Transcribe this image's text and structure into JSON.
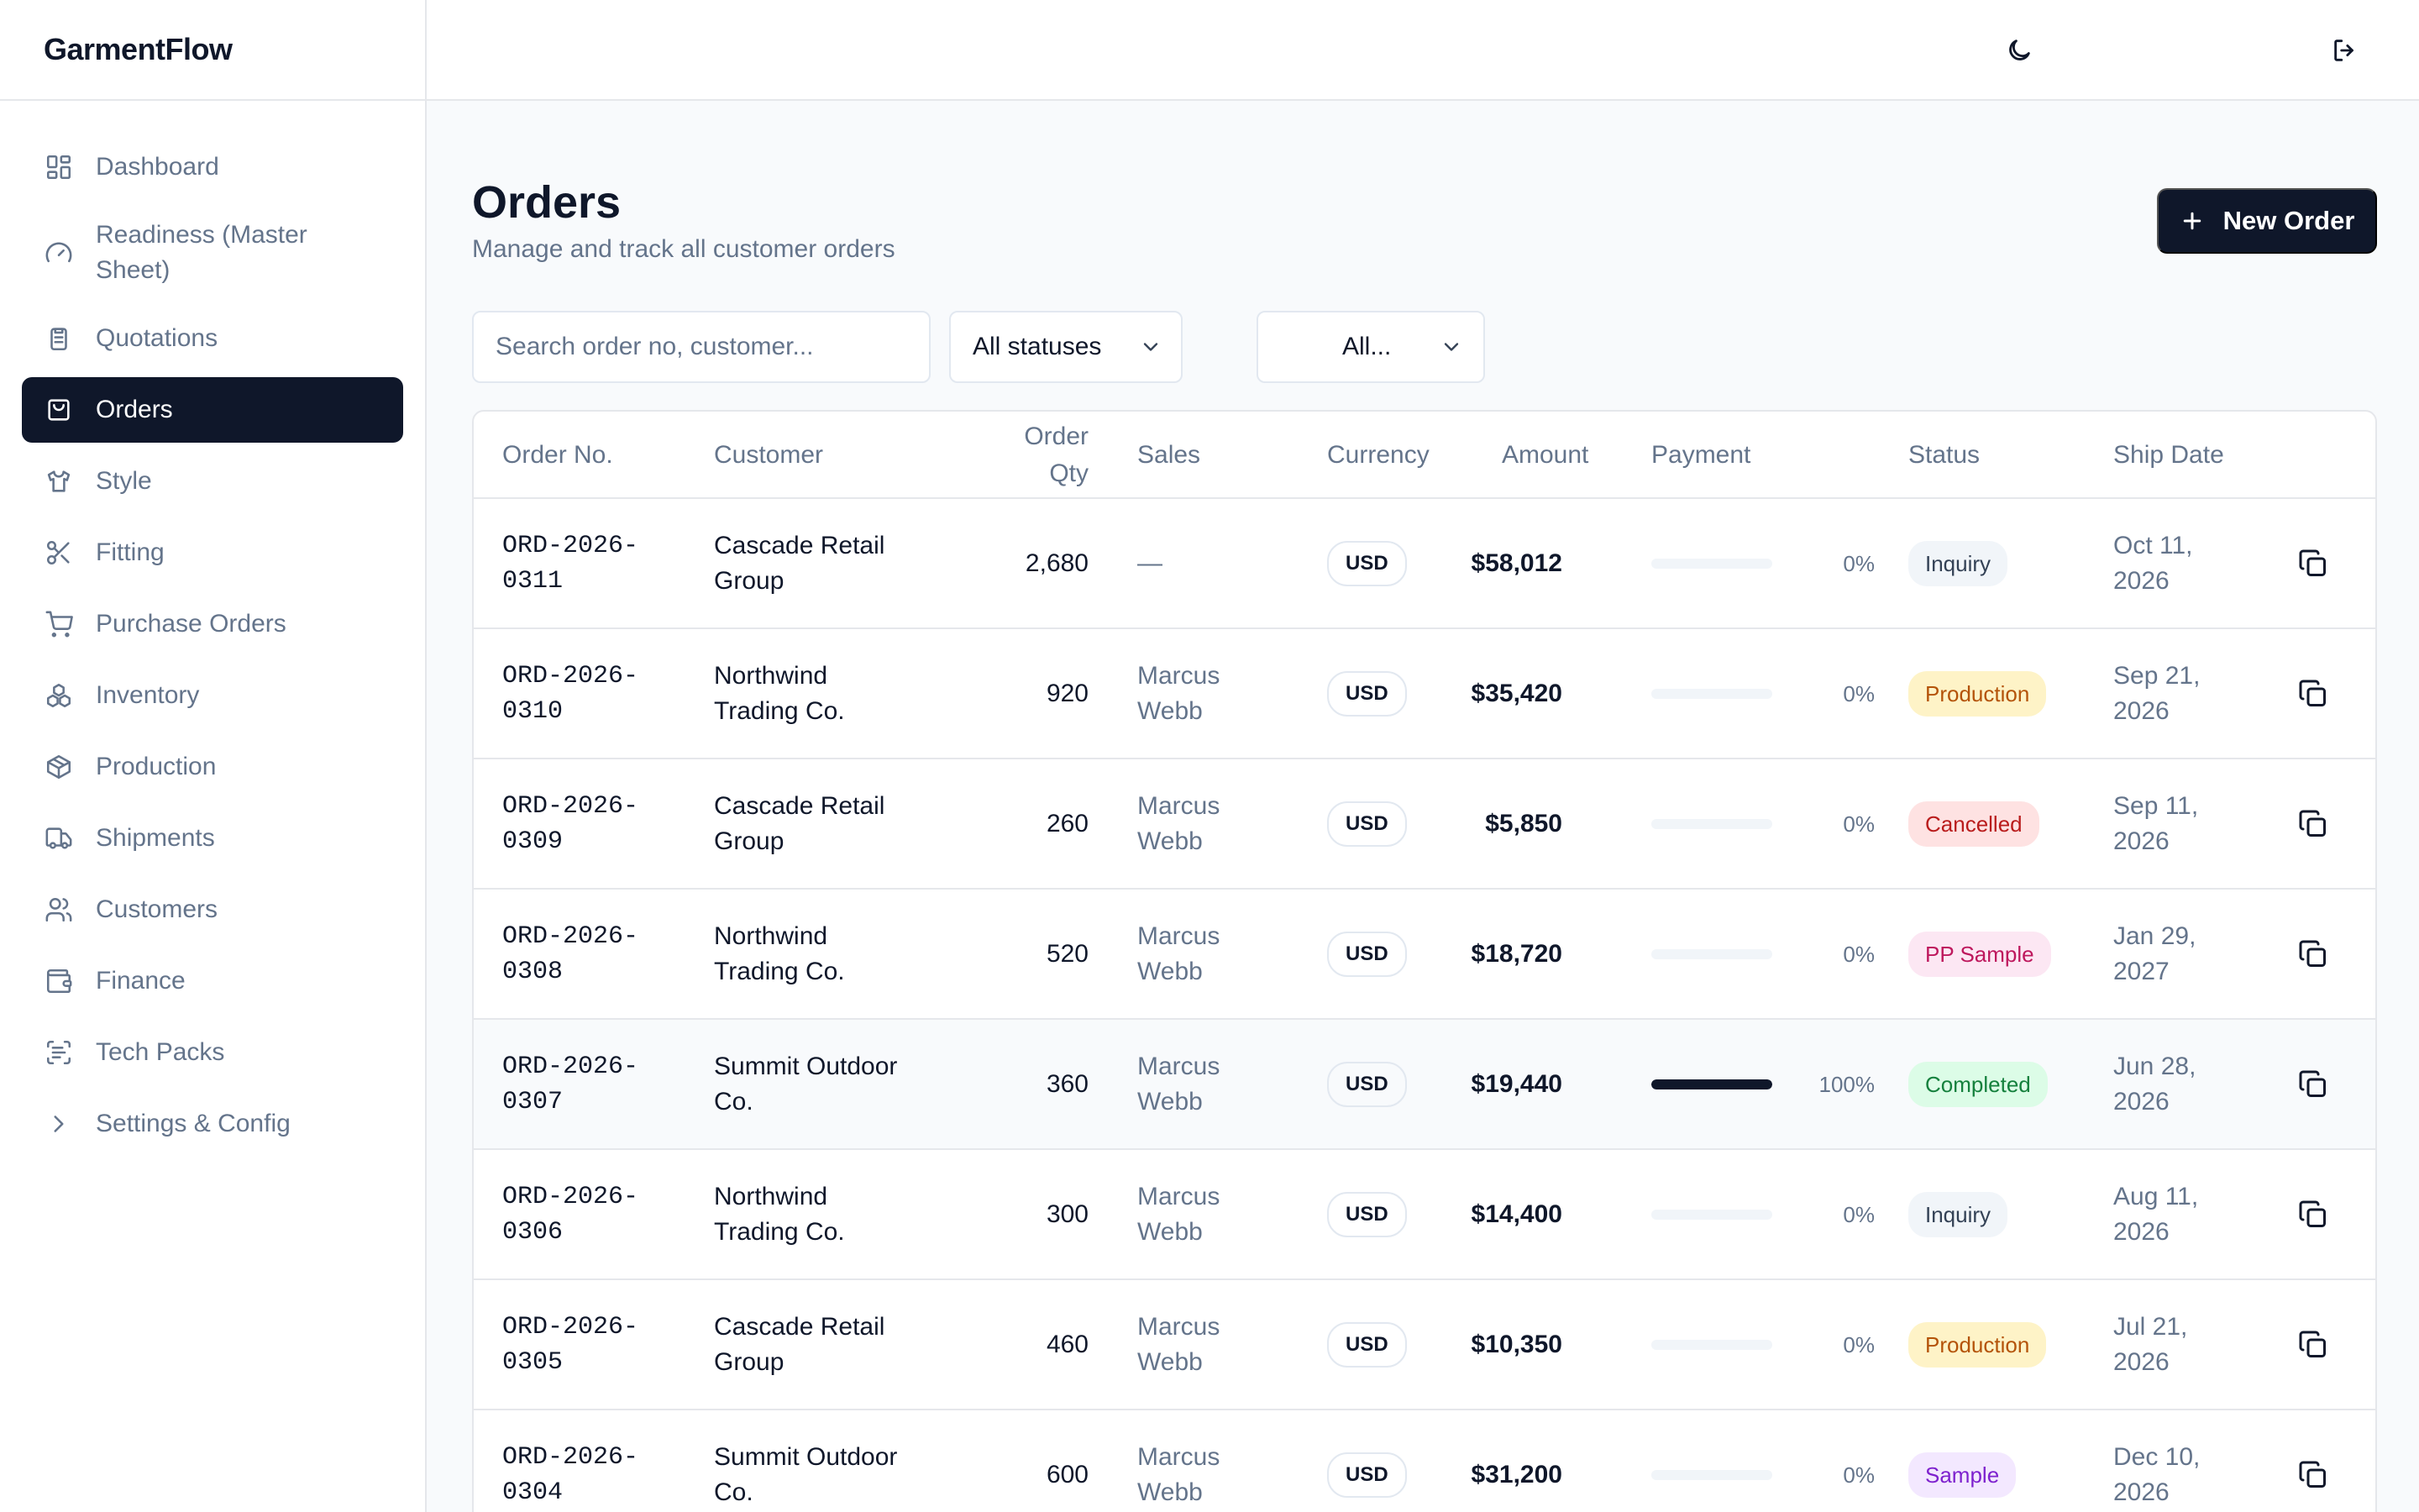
{
  "app": {
    "name": "GarmentFlow"
  },
  "sidebar": {
    "items": [
      {
        "label": "Dashboard",
        "icon": "dashboard-icon"
      },
      {
        "label": "Readiness (Master Sheet)",
        "icon": "gauge-icon"
      },
      {
        "label": "Quotations",
        "icon": "clipboard-icon"
      },
      {
        "label": "Orders",
        "icon": "shopping-bag-icon",
        "active": true
      },
      {
        "label": "Style",
        "icon": "shirt-icon"
      },
      {
        "label": "Fitting",
        "icon": "scissors-icon"
      },
      {
        "label": "Purchase Orders",
        "icon": "cart-icon"
      },
      {
        "label": "Inventory",
        "icon": "boxes-icon"
      },
      {
        "label": "Production",
        "icon": "package-icon"
      },
      {
        "label": "Shipments",
        "icon": "truck-icon"
      },
      {
        "label": "Customers",
        "icon": "users-icon"
      },
      {
        "label": "Finance",
        "icon": "wallet-icon"
      },
      {
        "label": "Tech Packs",
        "icon": "scan-icon"
      },
      {
        "label": "Settings & Config",
        "icon": "chevron-right-icon"
      }
    ]
  },
  "topbar": {
    "theme_icon": "moon-icon",
    "logout_icon": "logout-icon"
  },
  "page": {
    "title": "Orders",
    "subtitle": "Manage and track all customer orders",
    "new_order_label": "New Order"
  },
  "filters": {
    "search_placeholder": "Search order no, customer...",
    "status_value": "All statuses",
    "second_value": "All..."
  },
  "table": {
    "headers": {
      "order_no": "Order No.",
      "customer": "Customer",
      "order_qty_1": "Order",
      "order_qty_2": "Qty",
      "sales": "Sales",
      "currency": "Currency",
      "amount": "Amount",
      "payment": "Payment",
      "status": "Status",
      "ship_date": "Ship Date"
    },
    "rows": [
      {
        "order_no": [
          "ORD-2026-",
          "0311"
        ],
        "customer": [
          "Cascade Retail",
          "Group"
        ],
        "qty": "2,680",
        "sales": [
          "—"
        ],
        "currency": "USD",
        "amount": "$58,012",
        "payment_pct": 0,
        "payment_label": "0%",
        "status": "Inquiry",
        "status_key": "inquiry",
        "ship_date": [
          "Oct 11,",
          "2026"
        ]
      },
      {
        "order_no": [
          "ORD-2026-",
          "0310"
        ],
        "customer": [
          "Northwind",
          "Trading Co."
        ],
        "qty": "920",
        "sales": [
          "Marcus",
          "Webb"
        ],
        "currency": "USD",
        "amount": "$35,420",
        "payment_pct": 0,
        "payment_label": "0%",
        "status": "Production",
        "status_key": "production",
        "ship_date": [
          "Sep 21,",
          "2026"
        ]
      },
      {
        "order_no": [
          "ORD-2026-",
          "0309"
        ],
        "customer": [
          "Cascade Retail",
          "Group"
        ],
        "qty": "260",
        "sales": [
          "Marcus",
          "Webb"
        ],
        "currency": "USD",
        "amount": "$5,850",
        "payment_pct": 0,
        "payment_label": "0%",
        "status": "Cancelled",
        "status_key": "cancelled",
        "ship_date": [
          "Sep 11,",
          "2026"
        ]
      },
      {
        "order_no": [
          "ORD-2026-",
          "0308"
        ],
        "customer": [
          "Northwind",
          "Trading Co."
        ],
        "qty": "520",
        "sales": [
          "Marcus",
          "Webb"
        ],
        "currency": "USD",
        "amount": "$18,720",
        "payment_pct": 0,
        "payment_label": "0%",
        "status": "PP Sample",
        "status_key": "ppsample",
        "ship_date": [
          "Jan 29,",
          "2027"
        ]
      },
      {
        "order_no": [
          "ORD-2026-",
          "0307"
        ],
        "customer": [
          "Summit Outdoor",
          "Co."
        ],
        "qty": "360",
        "sales": [
          "Marcus",
          "Webb"
        ],
        "currency": "USD",
        "amount": "$19,440",
        "payment_pct": 100,
        "payment_label": "100%",
        "status": "Completed",
        "status_key": "completed",
        "ship_date": [
          "Jun 28,",
          "2026"
        ],
        "highlight": true
      },
      {
        "order_no": [
          "ORD-2026-",
          "0306"
        ],
        "customer": [
          "Northwind",
          "Trading Co."
        ],
        "qty": "300",
        "sales": [
          "Marcus",
          "Webb"
        ],
        "currency": "USD",
        "amount": "$14,400",
        "payment_pct": 0,
        "payment_label": "0%",
        "status": "Inquiry",
        "status_key": "inquiry",
        "ship_date": [
          "Aug 11,",
          "2026"
        ]
      },
      {
        "order_no": [
          "ORD-2026-",
          "0305"
        ],
        "customer": [
          "Cascade Retail",
          "Group"
        ],
        "qty": "460",
        "sales": [
          "Marcus",
          "Webb"
        ],
        "currency": "USD",
        "amount": "$10,350",
        "payment_pct": 0,
        "payment_label": "0%",
        "status": "Production",
        "status_key": "production",
        "ship_date": [
          "Jul 21,",
          "2026"
        ]
      },
      {
        "order_no": [
          "ORD-2026-",
          "0304"
        ],
        "customer": [
          "Summit Outdoor",
          "Co."
        ],
        "qty": "600",
        "sales": [
          "Marcus",
          "Webb"
        ],
        "currency": "USD",
        "amount": "$31,200",
        "payment_pct": 0,
        "payment_label": "0%",
        "status": "Sample",
        "status_key": "sample",
        "ship_date": [
          "Dec 10,",
          "2026"
        ]
      }
    ]
  },
  "status_colors": {
    "inquiry": {
      "bg": "#f1f5f9",
      "fg": "#334155"
    },
    "production": {
      "bg": "#fef3c7",
      "fg": "#b45309"
    },
    "cancelled": {
      "bg": "#fee2e2",
      "fg": "#b91c1c"
    },
    "ppsample": {
      "bg": "#fce7f3",
      "fg": "#be185d"
    },
    "completed": {
      "bg": "#dcfce7",
      "fg": "#15803d"
    },
    "sample": {
      "bg": "#f3e8ff",
      "fg": "#7e22ce"
    }
  }
}
